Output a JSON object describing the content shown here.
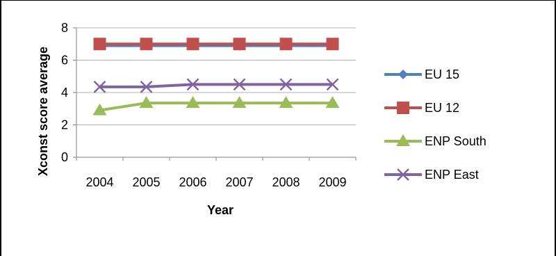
{
  "chart_data": {
    "type": "line",
    "title": "",
    "xlabel": "Year",
    "ylabel": "Xconst score average",
    "categories": [
      "2004",
      "2005",
      "2006",
      "2007",
      "2008",
      "2009"
    ],
    "ylim": [
      0,
      8
    ],
    "yticks": [
      "0",
      "2",
      "4",
      "6",
      "8"
    ],
    "grid": "horizontal",
    "legend_position": "right",
    "series": [
      {
        "name": "EU 15",
        "values": [
          6.9,
          6.9,
          6.9,
          6.9,
          6.9,
          6.9
        ],
        "color": "#4F81BD",
        "marker": "diamond"
      },
      {
        "name": "EU 12",
        "values": [
          7.0,
          7.0,
          7.0,
          7.0,
          7.0,
          7.0
        ],
        "color": "#C0504D",
        "marker": "square"
      },
      {
        "name": "ENP South",
        "values": [
          2.9,
          3.35,
          3.35,
          3.35,
          3.35,
          3.35
        ],
        "color": "#9BBB59",
        "marker": "triangle"
      },
      {
        "name": "ENP East",
        "values": [
          4.35,
          4.35,
          4.5,
          4.5,
          4.5,
          4.5
        ],
        "color": "#8064A2",
        "marker": "x"
      }
    ]
  }
}
